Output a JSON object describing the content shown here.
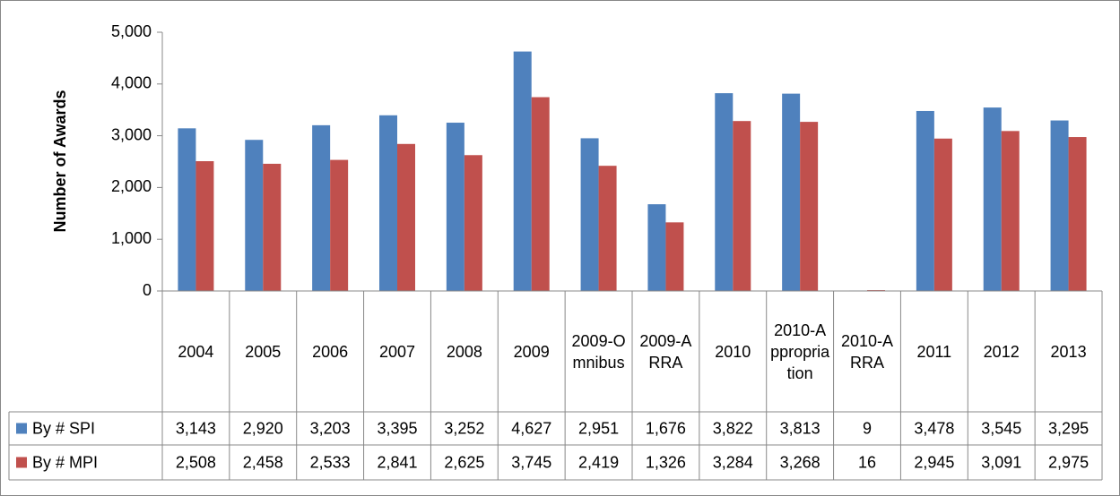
{
  "chart_data": {
    "type": "bar",
    "y_axis_label": "Number of Awards",
    "categories": [
      "2004",
      "2005",
      "2006",
      "2007",
      "2008",
      "2009",
      "2009-Omnibus",
      "2009-ARRA",
      "2010",
      "2010-Appropriation",
      "2010-ARRA",
      "2011",
      "2012",
      "2013"
    ],
    "series": [
      {
        "name": "By # SPI",
        "color": "#4f81bd",
        "values": [
          3143,
          2920,
          3203,
          3395,
          3252,
          4627,
          2951,
          1676,
          3822,
          3813,
          9,
          3478,
          3545,
          3295
        ],
        "value_labels": [
          "3,143",
          "2,920",
          "3,203",
          "3,395",
          "3,252",
          "4,627",
          "2,951",
          "1,676",
          "3,822",
          "3,813",
          "9",
          "3,478",
          "3,545",
          "3,295"
        ]
      },
      {
        "name": "By # MPI",
        "color": "#c0504d",
        "values": [
          2508,
          2458,
          2533,
          2841,
          2625,
          3745,
          2419,
          1326,
          3284,
          3268,
          16,
          2945,
          3091,
          2975
        ],
        "value_labels": [
          "2,508",
          "2,458",
          "2,533",
          "2,841",
          "2,625",
          "3,745",
          "2,419",
          "1,326",
          "3,284",
          "3,268",
          "16",
          "2,945",
          "3,091",
          "2,975"
        ]
      }
    ],
    "ylim": [
      0,
      5000
    ],
    "yticks": [
      0,
      {
        "value": 1000,
        "label": "1,000"
      },
      {
        "value": 2000,
        "label": "2,000"
      },
      {
        "value": 3000,
        "label": "3,000"
      },
      {
        "value": 4000,
        "label": "4,000"
      },
      {
        "value": 5000,
        "label": "5,000"
      }
    ],
    "grid": false
  }
}
